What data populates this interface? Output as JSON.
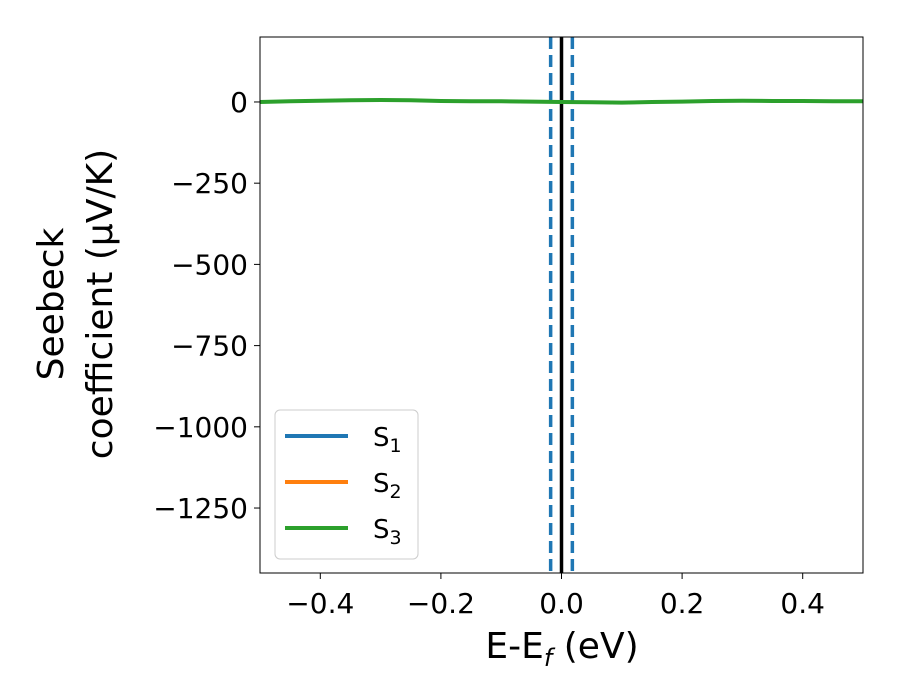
{
  "chart_data": {
    "type": "line",
    "xlabel": {
      "main": "E-E",
      "sub": "f",
      "rest": " (eV)"
    },
    "ylabel": {
      "line1": "Seebeck",
      "line2": "coefficient  (μV/K)"
    },
    "xlim": [
      -0.5,
      0.5
    ],
    "ylim": [
      -1450,
      200
    ],
    "xticks": [
      -0.4,
      -0.2,
      0.0,
      0.2,
      0.4
    ],
    "xtick_labels": [
      "−0.4",
      "−0.2",
      "0.0",
      "0.2",
      "0.4"
    ],
    "yticks": [
      0,
      -250,
      -500,
      -750,
      -1000,
      -1250
    ],
    "ytick_labels": [
      "0",
      "−250",
      "−500",
      "−750",
      "−1000",
      "−1250"
    ],
    "grid": false,
    "legend_position": "lower-left",
    "series": [
      {
        "name": "S",
        "sub": "1",
        "color": "#1f77b4",
        "x": [],
        "y": []
      },
      {
        "name": "S",
        "sub": "2",
        "color": "#ff7f0e",
        "x": [],
        "y": []
      },
      {
        "name": "S",
        "sub": "3",
        "color": "#2ca02c",
        "x": [
          -0.5,
          -0.45,
          -0.4,
          -0.35,
          -0.3,
          -0.25,
          -0.2,
          -0.15,
          -0.1,
          -0.05,
          0.0,
          0.05,
          0.1,
          0.15,
          0.2,
          0.25,
          0.3,
          0.35,
          0.4,
          0.45,
          0.5
        ],
        "y": [
          0,
          2,
          4,
          5,
          6,
          5,
          3,
          2,
          2,
          1,
          0,
          -1,
          -2,
          0,
          1,
          3,
          4,
          3,
          3,
          2,
          2
        ]
      }
    ],
    "vlines": [
      {
        "x": 0.0,
        "color": "#000000",
        "style": "solid"
      },
      {
        "x": -0.018,
        "color": "#1f77b4",
        "style": "dashed"
      },
      {
        "x": 0.018,
        "color": "#1f77b4",
        "style": "dashed"
      }
    ]
  }
}
